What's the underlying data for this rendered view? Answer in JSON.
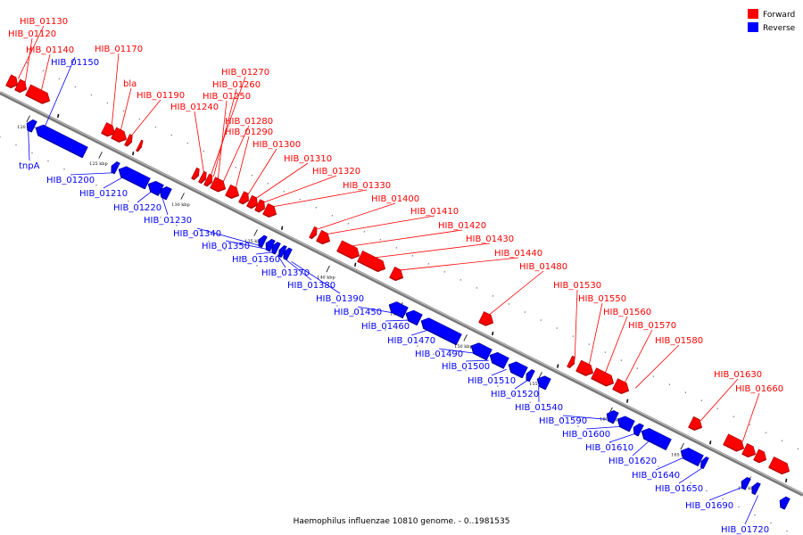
{
  "caption": "Haemophilus influenzae 10810 genome. - 0..1981535",
  "legend": [
    {
      "label": "Forward",
      "color": "#ff0000"
    },
    {
      "label": "Reverse",
      "color": "#0000ff"
    }
  ],
  "strand_colors": {
    "forward": "#ff0000",
    "reverse": "#0000ff",
    "forward_dark": "#b00000",
    "reverse_dark": "#0000a0",
    "axis": "#777777"
  },
  "ticks": [
    "120 kbp",
    "125 kbp",
    "130 kbp",
    "135 kbp",
    "140 kbp",
    "145 kbp",
    "150 kbp",
    "155 kbp",
    "160 kbp",
    "165 kbp",
    "170 kbp"
  ],
  "forward_genes": [
    "HIB_01130",
    "HIB_01120",
    "HIB_01140",
    "HIB_01170",
    "bla",
    "HIB_01190",
    "HIB_01270",
    "HIB_01260",
    "HIB_01250",
    "HIB_01240",
    "HIB_01280",
    "HIB_01290",
    "HIB_01300",
    "HIB_01310",
    "HIB_01320",
    "HIB_01330",
    "HIB_01400",
    "HIB_01410",
    "HIB_01420",
    "HIB_01430",
    "HIB_01440",
    "HIB_01480",
    "HIB_01530",
    "HIB_01550",
    "HIB_01560",
    "HIB_01570",
    "HIB_01580",
    "HIB_01630",
    "HIB_01660"
  ],
  "reverse_genes": [
    "HIB_01150",
    "tnpA",
    "HIB_01200",
    "HIB_01210",
    "HIB_01220",
    "HIB_01230",
    "HIB_01340",
    "HIB_01350",
    "HIB_01360",
    "HIB_01370",
    "HIB_01380",
    "HIB_01390",
    "HIB_01450",
    "HIB_01460",
    "HIB_01470",
    "HIB_01490",
    "HIB_01500",
    "HIB_01510",
    "HIB_01520",
    "HIB_01540",
    "HIB_01590",
    "HIB_01600",
    "HIB_01610",
    "HIB_01620",
    "HIB_01640",
    "HIB_01650",
    "HIB_01690",
    "HIB_01720"
  ]
}
